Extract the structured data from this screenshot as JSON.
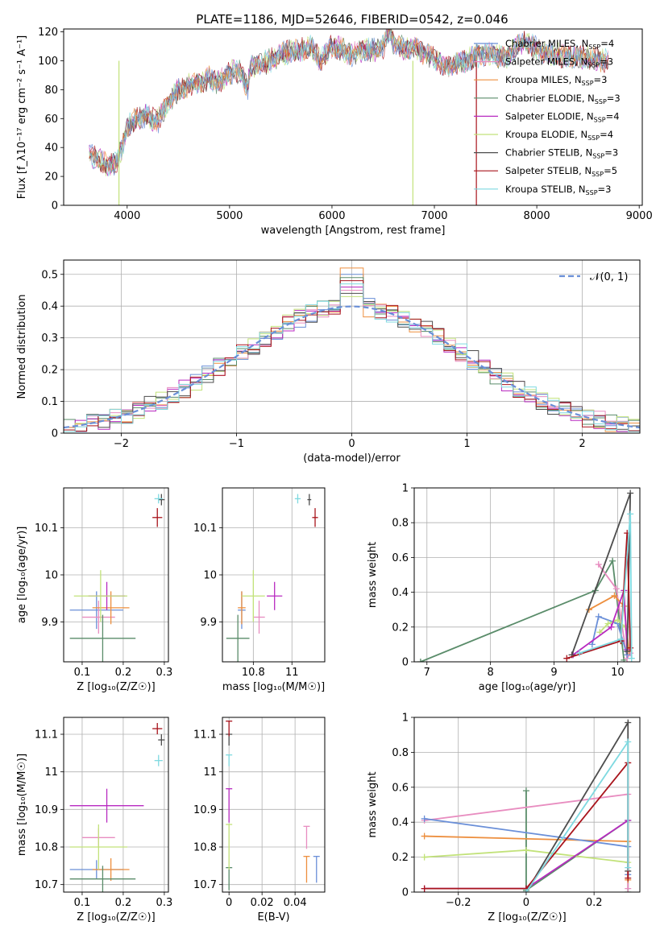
{
  "title": "PLATE=1186, MJD=52646, FIBERID=0542, z=0.046",
  "colors": [
    "#6a8fd8",
    "#ed8f3f",
    "#5a8c6a",
    "#b82ac0",
    "#c2e27a",
    "#e88dc0",
    "#4d4d4d",
    "#a8141c",
    "#7ed9e0"
  ],
  "chart_data": [
    {
      "id": "spectrum",
      "type": "line",
      "xlabel": "wavelength [Angstrom, rest frame]",
      "ylabel": "Flux [f_λ10⁻¹⁷ erg cm⁻² s⁻¹ A⁻¹]",
      "xlim": [
        3380,
        9030
      ],
      "ylim": [
        0,
        122
      ],
      "xticks": [
        4000,
        5000,
        6000,
        7000,
        8000,
        9000
      ],
      "yticks": [
        0,
        20,
        40,
        60,
        80,
        100,
        120
      ],
      "legend": "top-right",
      "legend_entries": [
        {
          "label": "Chabrier MILES, N",
          "sub": "SSP",
          "eq": "=4",
          "color": "#6a8fd8"
        },
        {
          "label": "Salpeter MILES, N",
          "sub": "SSP",
          "eq": "=3",
          "color": "#e88dc0"
        },
        {
          "label": "Kroupa MILES, N",
          "sub": "SSP",
          "eq": "=3",
          "color": "#ed8f3f"
        },
        {
          "label": "Chabrier ELODIE, N",
          "sub": "SSP",
          "eq": "=3",
          "color": "#5a8c6a"
        },
        {
          "label": "Salpeter ELODIE, N",
          "sub": "SSP",
          "eq": "=4",
          "color": "#b82ac0"
        },
        {
          "label": "Kroupa ELODIE, N",
          "sub": "SSP",
          "eq": "=4",
          "color": "#c2e27a"
        },
        {
          "label": "Chabrier STELIB, N",
          "sub": "SSP",
          "eq": "=3",
          "color": "#4d4d4d"
        },
        {
          "label": "Salpeter STELIB, N",
          "sub": "SSP",
          "eq": "=5",
          "color": "#a8141c"
        },
        {
          "label": "Kroupa STELIB, N",
          "sub": "SSP",
          "eq": "=3",
          "color": "#7ed9e0"
        }
      ],
      "series_summary": {
        "x": [
          3630,
          3700,
          3800,
          3900,
          3950,
          4000,
          4100,
          4200,
          4300,
          4400,
          4500,
          4600,
          4700,
          4800,
          4900,
          5000,
          5100,
          5175,
          5200,
          5300,
          5400,
          5500,
          5600,
          5700,
          5800,
          5890,
          6000,
          6100,
          6200,
          6300,
          6400,
          6500,
          6563,
          6600,
          6700,
          6800,
          6900,
          7000,
          7100,
          7200,
          7300,
          7400,
          7500,
          7600,
          7700,
          7800,
          7900,
          8000,
          8100,
          8200,
          8300,
          8400,
          8500,
          8600,
          8700
        ],
        "y": [
          35,
          32,
          28,
          30,
          40,
          55,
          60,
          62,
          58,
          72,
          80,
          83,
          85,
          88,
          85,
          92,
          93,
          80,
          95,
          98,
          100,
          105,
          106,
          108,
          110,
          100,
          110,
          108,
          104,
          108,
          107,
          110,
          122,
          112,
          108,
          110,
          105,
          102,
          95,
          98,
          100,
          103,
          105,
          104,
          102,
          110,
          114,
          108,
          105,
          104,
          103,
          103,
          102,
          101,
          100
        ]
      },
      "dropouts": [
        {
          "label": "Kroupa ELODIE",
          "x": 3920
        },
        {
          "label": "Kroupa ELODIE",
          "x": 6790
        },
        {
          "label": "Salpeter STELIB",
          "x": 7410
        }
      ]
    },
    {
      "id": "residuals",
      "type": "histogram",
      "xlabel": "(data-model)/error",
      "ylabel": "Normed distribution",
      "xlim": [
        -2.5,
        2.5
      ],
      "ylim": [
        0,
        0.545
      ],
      "xticks": [
        -2,
        -1,
        0,
        1,
        2
      ],
      "yticks": [
        0.0,
        0.1,
        0.2,
        0.3,
        0.4,
        0.5
      ],
      "grid": true,
      "legend": "top-right",
      "legend_entries": [
        {
          "label": "𝒩(0, 1)",
          "style": "dashed",
          "color": "#6a8fd8"
        }
      ],
      "bin_width": 0.1,
      "peak_values": [
        0.5,
        0.52,
        0.49,
        0.46,
        0.43,
        0.45,
        0.44,
        0.48,
        0.47
      ]
    },
    {
      "id": "age-vs-Z",
      "type": "errorbar",
      "xlabel": "Z [log₁₀(Z/Z☉)]",
      "ylabel": "age  [log₁₀(age/yr)]",
      "xlim": [
        0.055,
        0.31
      ],
      "ylim": [
        9.815,
        10.185
      ],
      "xticks": [
        0.1,
        0.2,
        0.3
      ],
      "yticks": [
        9.9,
        10.0,
        10.1
      ],
      "grid": true,
      "points": [
        {
          "color": "#6a8fd8",
          "x": 0.135,
          "xerr": 0.065,
          "y": 9.925,
          "yerr": 0.04
        },
        {
          "color": "#e88dc0",
          "x": 0.14,
          "xerr": 0.04,
          "y": 9.91,
          "yerr": 0.035
        },
        {
          "color": "#ed8f3f",
          "x": 0.17,
          "xerr": 0.045,
          "y": 9.93,
          "yerr": 0.035
        },
        {
          "color": "#5a8c6a",
          "x": 0.15,
          "xerr": 0.08,
          "y": 9.865,
          "yerr": 0.05
        },
        {
          "color": "#b82ac0",
          "x": 0.16,
          "xerr": 0.045,
          "y": 9.955,
          "yerr": 0.03
        },
        {
          "color": "#c2e27a",
          "x": 0.145,
          "xerr": 0.065,
          "y": 9.955,
          "yerr": 0.055
        },
        {
          "color": "#4d4d4d",
          "x": 0.293,
          "xerr": 0.008,
          "y": 10.16,
          "yerr": 0.012
        },
        {
          "color": "#a8141c",
          "x": 0.283,
          "xerr": 0.012,
          "y": 10.122,
          "yerr": 0.02
        },
        {
          "color": "#7ed9e0",
          "x": 0.286,
          "xerr": 0.01,
          "y": 10.162,
          "yerr": 0.01
        }
      ]
    },
    {
      "id": "age-vs-mass",
      "type": "errorbar",
      "xlabel": "mass [log₁₀(M/M☉)]",
      "ylabel": "",
      "xlim": [
        10.64,
        11.17
      ],
      "ylim": [
        9.815,
        10.185
      ],
      "xticks": [
        10.8,
        11.0
      ],
      "yticks": [
        9.9,
        10.0,
        10.1
      ],
      "grid": true,
      "points": [
        {
          "color": "#6a8fd8",
          "x": 10.74,
          "xerr": 0.02,
          "y": 9.925,
          "yerr": 0.04
        },
        {
          "color": "#e88dc0",
          "x": 10.83,
          "xerr": 0.03,
          "y": 9.91,
          "yerr": 0.035
        },
        {
          "color": "#ed8f3f",
          "x": 10.74,
          "xerr": 0.02,
          "y": 9.93,
          "yerr": 0.035
        },
        {
          "color": "#5a8c6a",
          "x": 10.72,
          "xerr": 0.06,
          "y": 9.865,
          "yerr": 0.05
        },
        {
          "color": "#b82ac0",
          "x": 10.91,
          "xerr": 0.04,
          "y": 9.955,
          "yerr": 0.03
        },
        {
          "color": "#c2e27a",
          "x": 10.8,
          "xerr": 0.06,
          "y": 9.955,
          "yerr": 0.055
        },
        {
          "color": "#4d4d4d",
          "x": 11.09,
          "xerr": 0.01,
          "y": 10.16,
          "yerr": 0.012
        },
        {
          "color": "#a8141c",
          "x": 11.12,
          "xerr": 0.015,
          "y": 10.122,
          "yerr": 0.02
        },
        {
          "color": "#7ed9e0",
          "x": 11.03,
          "xerr": 0.015,
          "y": 10.162,
          "yerr": 0.01
        }
      ]
    },
    {
      "id": "weight-vs-age",
      "type": "line",
      "xlabel": "age  [log₁₀(age/yr)]",
      "ylabel": "mass weight",
      "xlim": [
        6.8,
        10.35
      ],
      "ylim": [
        0,
        1.0
      ],
      "xticks": [
        7,
        8,
        9,
        10
      ],
      "yticks": [
        0.0,
        0.2,
        0.4,
        0.6,
        0.8,
        1.0
      ],
      "grid": true,
      "series": [
        {
          "color": "#5a8c6a",
          "x": [
            6.9,
            9.65,
            9.92,
            10.1
          ],
          "y": [
            0.0,
            0.41,
            0.58,
            0.01
          ]
        },
        {
          "color": "#e88dc0",
          "x": [
            9.7,
            9.98,
            10.15,
            10.2
          ],
          "y": [
            0.56,
            0.42,
            0.02,
            0.05
          ]
        },
        {
          "color": "#ed8f3f",
          "x": [
            9.55,
            9.95,
            10.1,
            10.18
          ],
          "y": [
            0.3,
            0.38,
            0.32,
            0.06
          ]
        },
        {
          "color": "#6a8fd8",
          "x": [
            9.6,
            9.7,
            10.0,
            10.15
          ],
          "y": [
            0.1,
            0.26,
            0.22,
            0.04
          ]
        },
        {
          "color": "#c2e27a",
          "x": [
            9.72,
            9.85,
            10.0,
            10.12
          ],
          "y": [
            0.17,
            0.22,
            0.24,
            0.2
          ]
        },
        {
          "color": "#b82ac0",
          "x": [
            9.3,
            9.9,
            10.1,
            10.15
          ],
          "y": [
            0.04,
            0.2,
            0.41,
            0.07
          ]
        },
        {
          "color": "#4d4d4d",
          "x": [
            9.28,
            10.2,
            10.15
          ],
          "y": [
            0.04,
            0.97,
            0.06
          ]
        },
        {
          "color": "#a8141c",
          "x": [
            9.2,
            10.05,
            10.15,
            10.2
          ],
          "y": [
            0.02,
            0.12,
            0.74,
            0.08
          ]
        },
        {
          "color": "#7ed9e0",
          "x": [
            9.4,
            10.05,
            10.2,
            10.22
          ],
          "y": [
            0.05,
            0.13,
            0.85,
            0.02
          ]
        }
      ]
    },
    {
      "id": "mass-vs-Z",
      "type": "errorbar",
      "xlabel": "Z [log₁₀(Z/Z☉)]",
      "ylabel": "mass [log₁₀(M/M☉)]",
      "xlim": [
        0.055,
        0.31
      ],
      "ylim": [
        10.68,
        11.145
      ],
      "xticks": [
        0.1,
        0.2,
        0.3
      ],
      "yticks": [
        10.7,
        10.8,
        10.9,
        11.0,
        11.1
      ],
      "grid": true,
      "points": [
        {
          "color": "#6a8fd8",
          "x": 0.135,
          "xerr": 0.065,
          "y": 10.74,
          "yerr": 0.025
        },
        {
          "color": "#e88dc0",
          "x": 0.14,
          "xerr": 0.04,
          "y": 10.825,
          "yerr": 0.025
        },
        {
          "color": "#ed8f3f",
          "x": 0.17,
          "xerr": 0.045,
          "y": 10.74,
          "yerr": 0.03
        },
        {
          "color": "#5a8c6a",
          "x": 0.15,
          "xerr": 0.08,
          "y": 10.715,
          "yerr": 0.035
        },
        {
          "color": "#b82ac0",
          "x": 0.16,
          "xerr": 0.09,
          "y": 10.91,
          "yerr": 0.045
        },
        {
          "color": "#c2e27a",
          "x": 0.14,
          "xerr": 0.07,
          "y": 10.8,
          "yerr": 0.06
        },
        {
          "color": "#4d4d4d",
          "x": 0.293,
          "xerr": 0.008,
          "y": 11.085,
          "yerr": 0.015
        },
        {
          "color": "#a8141c",
          "x": 0.283,
          "xerr": 0.012,
          "y": 11.115,
          "yerr": 0.015
        },
        {
          "color": "#7ed9e0",
          "x": 0.286,
          "xerr": 0.01,
          "y": 11.03,
          "yerr": 0.015
        }
      ]
    },
    {
      "id": "mass-vs-EBV",
      "type": "errorbar",
      "xlabel": "E(B-V)",
      "ylabel": "",
      "xlim": [
        -0.004,
        0.058
      ],
      "ylim": [
        10.68,
        11.145
      ],
      "xticks": [
        0.0,
        0.02,
        0.04
      ],
      "yticks": [
        10.7,
        10.8,
        10.9,
        11.0,
        11.1
      ],
      "grid": true,
      "points": [
        {
          "color": "#6a8fd8",
          "x": 0.053,
          "xerr": 0,
          "y": 10.74,
          "yerr": 0.035
        },
        {
          "color": "#e88dc0",
          "x": 0.047,
          "xerr": 0,
          "y": 10.825,
          "yerr": 0.03
        },
        {
          "color": "#ed8f3f",
          "x": 0.047,
          "xerr": 0,
          "y": 10.74,
          "yerr": 0.035
        },
        {
          "color": "#5a8c6a",
          "x": 0.0,
          "xerr": 0,
          "y": 10.715,
          "yerr": 0.03
        },
        {
          "color": "#b82ac0",
          "x": 0.0,
          "xerr": 0,
          "y": 10.91,
          "yerr": 0.045
        },
        {
          "color": "#c2e27a",
          "x": 0.0,
          "xerr": 0,
          "y": 10.8,
          "yerr": 0.06
        },
        {
          "color": "#4d4d4d",
          "x": 0.0,
          "xerr": 0,
          "y": 11.085,
          "yerr": 0.015
        },
        {
          "color": "#a8141c",
          "x": 0.0,
          "xerr": 0,
          "y": 11.115,
          "yerr": 0.02
        },
        {
          "color": "#7ed9e0",
          "x": 0.0,
          "xerr": 0,
          "y": 11.03,
          "yerr": 0.015
        }
      ]
    },
    {
      "id": "weight-vs-Z",
      "type": "line",
      "xlabel": "Z [log₁₀(Z/Z☉)]",
      "ylabel": "mass weight",
      "xlim": [
        -0.33,
        0.335
      ],
      "ylim": [
        0,
        1.0
      ],
      "xticks": [
        -0.2,
        0.0,
        0.2
      ],
      "yticks": [
        0.0,
        0.2,
        0.4,
        0.6,
        0.8,
        1.0
      ],
      "grid": true,
      "series": [
        {
          "color": "#5a8c6a",
          "x": [
            0.0,
            0.0,
            0.3,
            0.3
          ],
          "y": [
            0.58,
            0.01,
            0.41,
            0.0
          ]
        },
        {
          "color": "#e88dc0",
          "x": [
            -0.3,
            0.3,
            0.3
          ],
          "y": [
            0.41,
            0.56,
            0.02
          ]
        },
        {
          "color": "#ed8f3f",
          "x": [
            -0.3,
            0.3,
            0.3
          ],
          "y": [
            0.32,
            0.29,
            0.07
          ]
        },
        {
          "color": "#6a8fd8",
          "x": [
            -0.3,
            0.3,
            0.3
          ],
          "y": [
            0.42,
            0.26,
            0.1
          ]
        },
        {
          "color": "#c2e27a",
          "x": [
            -0.3,
            0.0,
            0.3
          ],
          "y": [
            0.2,
            0.24,
            0.17
          ]
        },
        {
          "color": "#b82ac0",
          "x": [
            -0.3,
            0.0,
            0.3
          ],
          "y": [
            0.02,
            0.02,
            0.41
          ]
        },
        {
          "color": "#4d4d4d",
          "x": [
            0.0,
            0.3,
            0.3
          ],
          "y": [
            0.0,
            0.97,
            0.12
          ]
        },
        {
          "color": "#a8141c",
          "x": [
            -0.3,
            0.0,
            0.3,
            0.3
          ],
          "y": [
            0.02,
            0.02,
            0.74,
            0.08
          ]
        },
        {
          "color": "#7ed9e0",
          "x": [
            0.0,
            0.3,
            0.3
          ],
          "y": [
            0.0,
            0.86,
            0.14
          ]
        }
      ]
    }
  ]
}
